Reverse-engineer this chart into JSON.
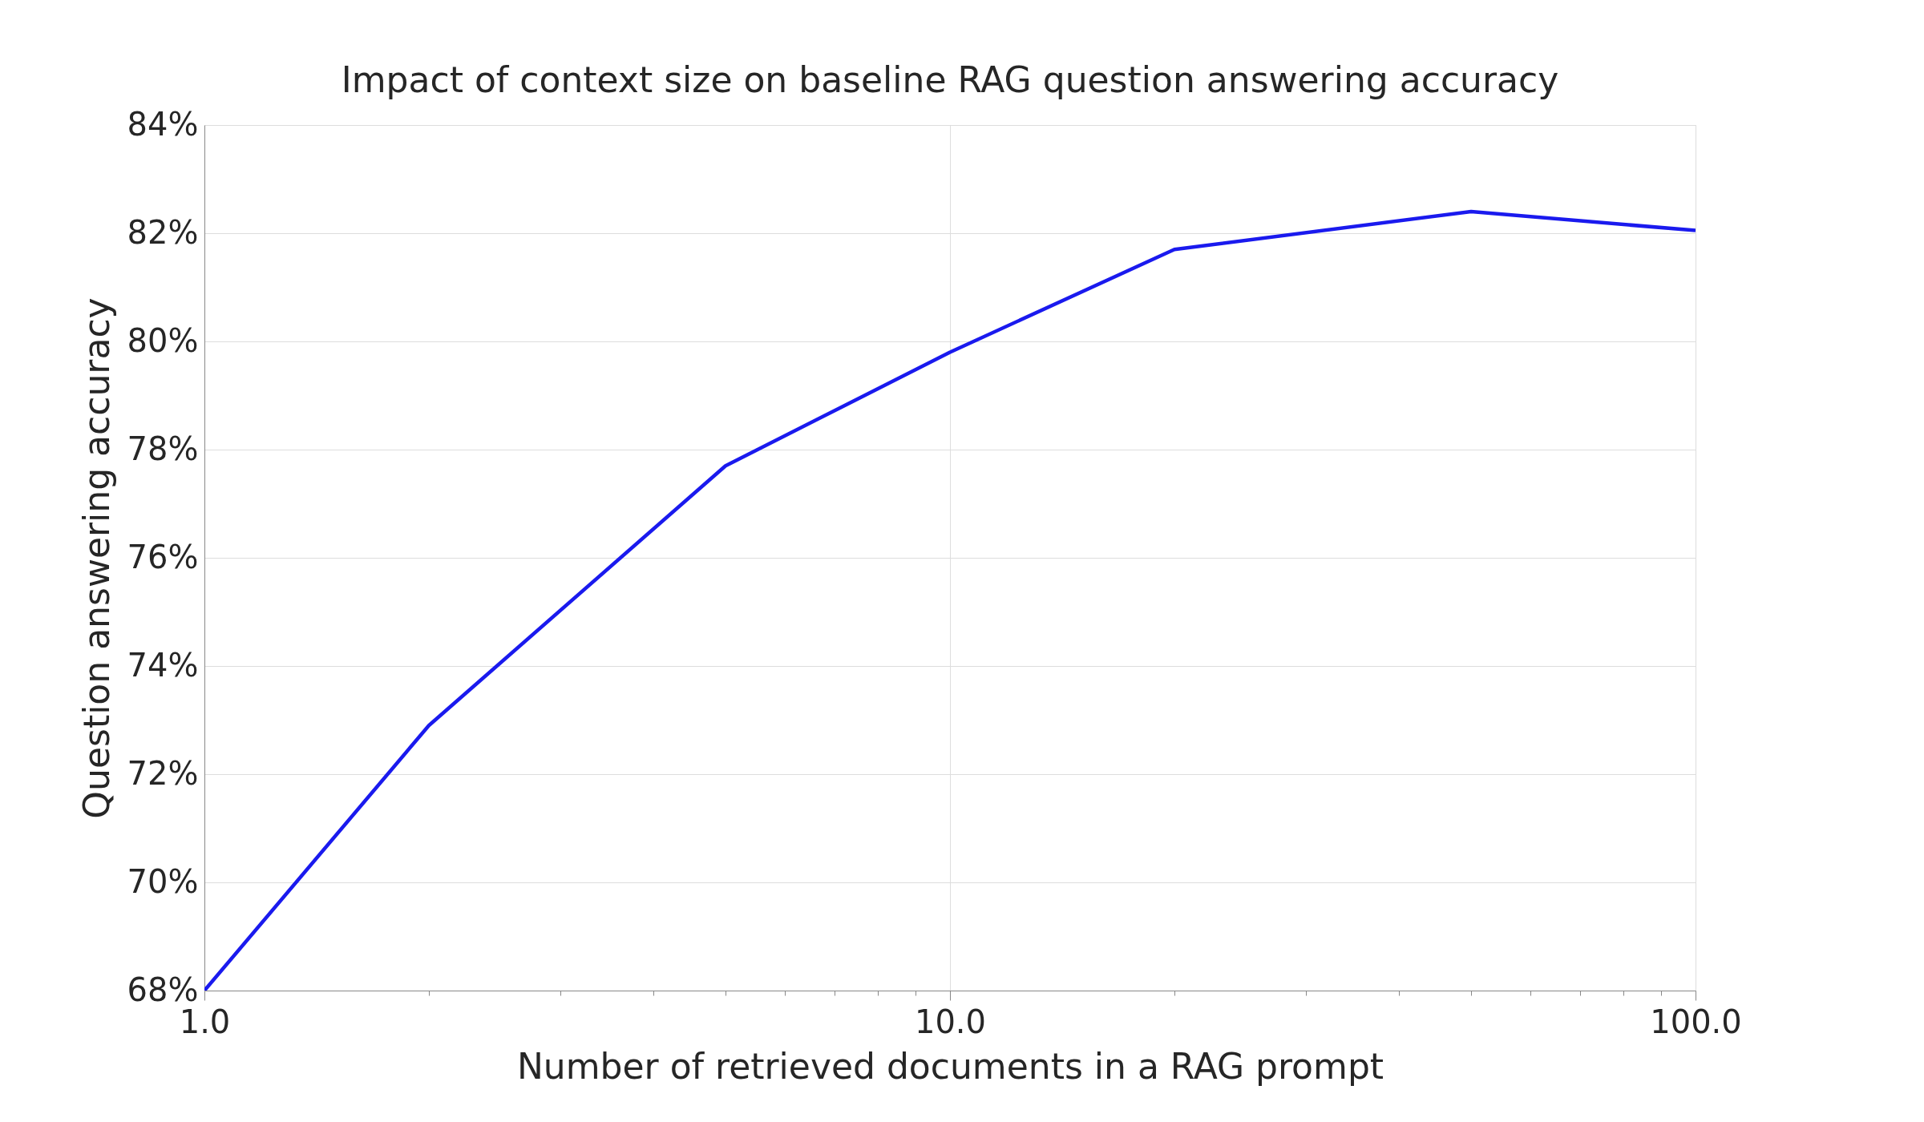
{
  "chart_data": {
    "type": "line",
    "title": "Impact of context size on baseline RAG question answering accuracy",
    "xlabel": "Number of retrieved documents in a RAG prompt",
    "ylabel": "Question answering accuracy",
    "x": [
      1,
      2,
      5,
      10,
      20,
      50,
      100
    ],
    "series": [
      {
        "color": "#1a1aee",
        "values": [
          68.0,
          72.9,
          77.7,
          79.8,
          81.7,
          82.4,
          82.05
        ]
      }
    ],
    "log": "x",
    "xlim": [
      1,
      100
    ],
    "ylim": [
      68,
      84
    ],
    "xticks": [
      {
        "value": 1,
        "label": "1.0"
      },
      {
        "value": 2,
        "label": null
      },
      {
        "value": 3,
        "label": null
      },
      {
        "value": 4,
        "label": null
      },
      {
        "value": 5,
        "label": null
      },
      {
        "value": 6,
        "label": null
      },
      {
        "value": 7,
        "label": null
      },
      {
        "value": 8,
        "label": null
      },
      {
        "value": 9,
        "label": null
      },
      {
        "value": 10,
        "label": "10.0"
      },
      {
        "value": 20,
        "label": null
      },
      {
        "value": 30,
        "label": null
      },
      {
        "value": 40,
        "label": null
      },
      {
        "value": 50,
        "label": null
      },
      {
        "value": 60,
        "label": null
      },
      {
        "value": 70,
        "label": null
      },
      {
        "value": 80,
        "label": null
      },
      {
        "value": 90,
        "label": null
      },
      {
        "value": 100,
        "label": "100.0"
      }
    ],
    "yticks": [
      {
        "value": 68,
        "label": "68%"
      },
      {
        "value": 70,
        "label": "70%"
      },
      {
        "value": 72,
        "label": "72%"
      },
      {
        "value": 74,
        "label": "74%"
      },
      {
        "value": 76,
        "label": "76%"
      },
      {
        "value": 78,
        "label": "78%"
      },
      {
        "value": 80,
        "label": "80%"
      },
      {
        "value": 82,
        "label": "82%"
      },
      {
        "value": 84,
        "label": "84%"
      }
    ],
    "grid": true,
    "marker": "none",
    "line_style": "solid"
  }
}
